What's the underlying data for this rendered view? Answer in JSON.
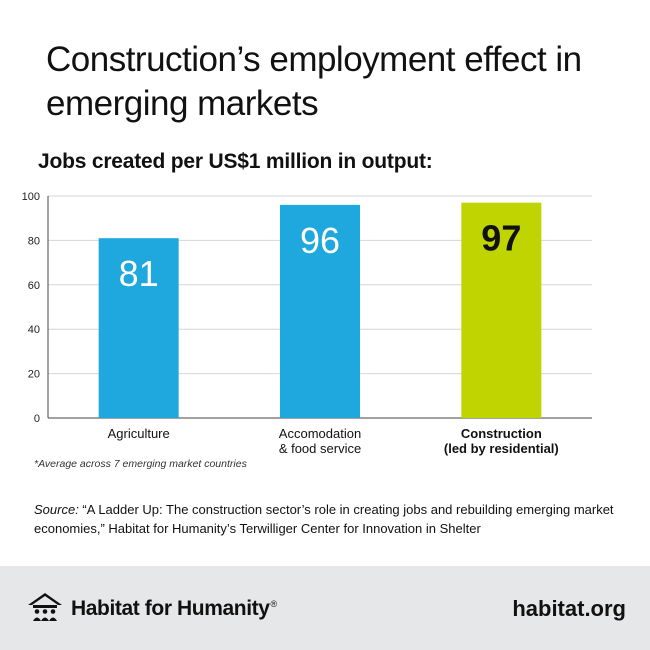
{
  "title": "Construction’s employment effect in emerging markets",
  "subtitle": "Jobs created per US$1 million in output:",
  "chart_data": {
    "type": "bar",
    "categories": [
      [
        "Agriculture"
      ],
      [
        "Accomodation",
        "& food service"
      ],
      [
        "Construction",
        "(led by residential)"
      ]
    ],
    "values": [
      81,
      96,
      97
    ],
    "value_labels": [
      "81",
      "96",
      "97"
    ],
    "bar_colors": [
      "#1fa8dd",
      "#1fa8dd",
      "#bfd400"
    ],
    "value_label_colors": [
      "#ffffff",
      "#ffffff",
      "#111111"
    ],
    "highlight_index": 2,
    "ylim": [
      0,
      100
    ],
    "yticks": [
      0,
      20,
      40,
      60,
      80,
      100
    ],
    "grid": true,
    "legend": "none"
  },
  "footnote": "*Average across 7 emerging market countries",
  "source": {
    "label": "Source:",
    "text": " “A Ladder Up: The construction sector’s role in creating jobs and rebuilding emerging market economies,” Habitat for Humanity’s Terwilliger Center for Innovation in Shelter"
  },
  "footer": {
    "brand": "Habitat for Humanity",
    "registered": "®",
    "logo_icon": "habitat-house-people-logo",
    "website": "habitat.org"
  },
  "colors": {
    "construction_accent": "#bfd400",
    "bar_blue": "#1fa8dd",
    "footer_bg": "#e6e7e8"
  }
}
